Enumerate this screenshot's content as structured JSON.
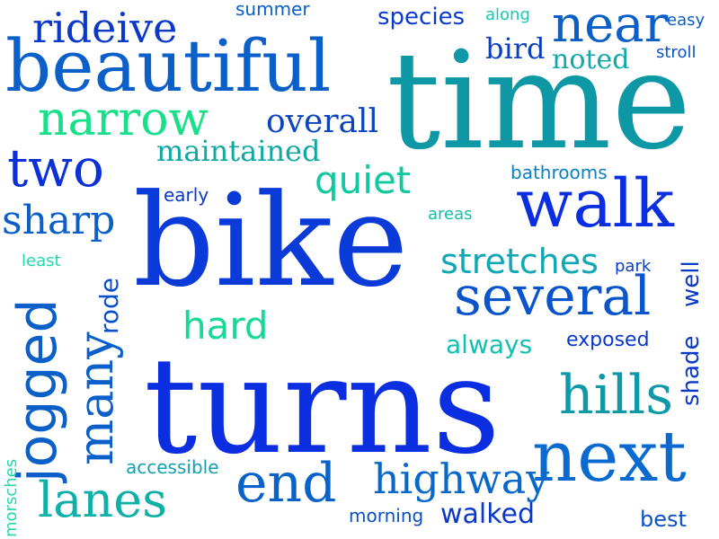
{
  "palette": {
    "blue": "#0a35e0",
    "mid_blue": "#0a5fc8",
    "sky": "#0a85c0",
    "teal": "#0ea0a0",
    "green": "#12d48a",
    "mint": "#22e2a8"
  },
  "words": [
    {
      "text": "time"
    },
    {
      "text": "turns"
    },
    {
      "text": "bike"
    },
    {
      "text": "beautiful"
    },
    {
      "text": "walk"
    },
    {
      "text": "next"
    },
    {
      "text": "several"
    },
    {
      "text": "near"
    },
    {
      "text": "narrow"
    },
    {
      "text": "two"
    },
    {
      "text": "rideive"
    },
    {
      "text": "end"
    },
    {
      "text": "lanes"
    },
    {
      "text": "hills"
    },
    {
      "text": "sharp"
    },
    {
      "text": "hard"
    },
    {
      "text": "quiet"
    },
    {
      "text": "stretches"
    },
    {
      "text": "highway"
    },
    {
      "text": "walked"
    },
    {
      "text": "overall"
    },
    {
      "text": "maintained"
    },
    {
      "text": "jogged"
    },
    {
      "text": "many"
    },
    {
      "text": "bird"
    },
    {
      "text": "noted"
    },
    {
      "text": "species"
    },
    {
      "text": "summer"
    },
    {
      "text": "along"
    },
    {
      "text": "easy"
    },
    {
      "text": "stroll"
    },
    {
      "text": "bathrooms"
    },
    {
      "text": "areas"
    },
    {
      "text": "early"
    },
    {
      "text": "least"
    },
    {
      "text": "rode"
    },
    {
      "text": "always"
    },
    {
      "text": "exposed"
    },
    {
      "text": "park"
    },
    {
      "text": "shade"
    },
    {
      "text": "well"
    },
    {
      "text": "accessible"
    },
    {
      "text": "morning"
    },
    {
      "text": "best"
    },
    {
      "text": "morsches"
    }
  ]
}
